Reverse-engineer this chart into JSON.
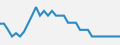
{
  "x": [
    0,
    1,
    2,
    3,
    4,
    5,
    6,
    7,
    8,
    9,
    10,
    11,
    12,
    13,
    14,
    15,
    16,
    17,
    18,
    19,
    20,
    21,
    22,
    23,
    24,
    25,
    26,
    27,
    28,
    29,
    30
  ],
  "y": [
    0.55,
    0.55,
    0.42,
    0.28,
    0.35,
    0.28,
    0.38,
    0.55,
    0.72,
    0.9,
    0.72,
    0.82,
    0.72,
    0.82,
    0.72,
    0.72,
    0.72,
    0.57,
    0.57,
    0.57,
    0.42,
    0.42,
    0.42,
    0.28,
    0.28,
    0.28,
    0.28,
    0.28,
    0.28,
    0.28,
    0.28
  ],
  "line_color": "#2b8cc4",
  "line_width": 1.5,
  "background_color": "#f2f2f2",
  "ylim": [
    0.1,
    1.05
  ],
  "xlim": [
    0,
    30
  ]
}
